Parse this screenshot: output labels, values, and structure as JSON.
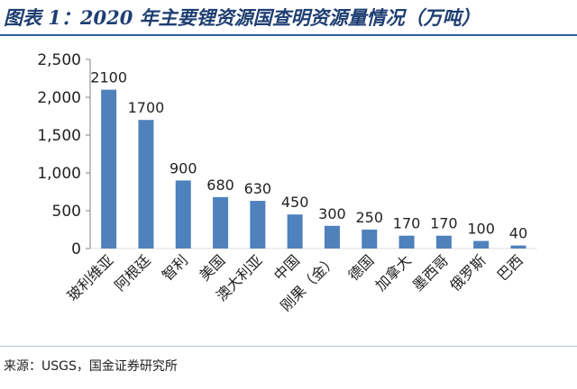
{
  "title": "图表 1：2020 年主要锂资源国查明资源量情况（万吨）",
  "source": "来源：USGS，国金证券研究所",
  "colors": {
    "bar": "#4f81bd",
    "axis": "#808080",
    "text": "#222222",
    "title": "#1f3f72"
  },
  "chart_data": {
    "type": "bar",
    "title": "图表 1：2020 年主要锂资源国查明资源量情况（万吨）",
    "xlabel": "",
    "ylabel": "",
    "categories": [
      "玻利维亚",
      "阿根廷",
      "智利",
      "美国",
      "澳大利亚",
      "中国",
      "刚果（金）",
      "德国",
      "加拿大",
      "墨西哥",
      "俄罗斯",
      "巴西"
    ],
    "values": [
      2100,
      1700,
      900,
      680,
      630,
      450,
      300,
      250,
      170,
      170,
      100,
      40
    ],
    "data_labels": [
      "2100",
      "1700",
      "900",
      "680",
      "630",
      "450",
      "300",
      "250",
      "170",
      "170",
      "100",
      "40"
    ],
    "ylim": [
      0,
      2500
    ],
    "yticks": [
      0,
      500,
      1000,
      1500,
      2000,
      2500
    ],
    "ytick_labels": [
      "0",
      "500",
      "1,000",
      "1,500",
      "2,000",
      "2,500"
    ],
    "grid": false,
    "legend": "none"
  }
}
